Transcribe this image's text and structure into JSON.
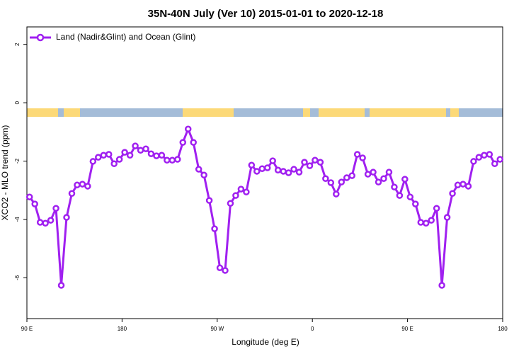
{
  "chart_data": {
    "type": "line",
    "title": "35N-40N July (Ver 10)   2015-01-01 to 2020-12-18",
    "x_label": "Longitude (deg E)",
    "y_label": "XCO2 - MLO trend (ppm)",
    "x": [
      92.5,
      97.5,
      102.5,
      107.5,
      112.5,
      117.5,
      122.5,
      127.5,
      132.5,
      137.5,
      142.5,
      147.5,
      152.5,
      157.5,
      162.5,
      167.5,
      172.5,
      177.5,
      182.5,
      187.5,
      192.5,
      197.5,
      202.5,
      207.5,
      212.5,
      217.5,
      222.5,
      227.5,
      232.5,
      237.5,
      242.5,
      247.5,
      252.5,
      257.5,
      262.5,
      267.5,
      272.5,
      277.5,
      282.5,
      287.5,
      292.5,
      297.5,
      302.5,
      307.5,
      312.5,
      317.5,
      322.5,
      327.5,
      332.5,
      337.5,
      342.5,
      347.5,
      352.5,
      357.5,
      362.5,
      367.5,
      372.5,
      377.5,
      382.5,
      387.5,
      392.5,
      397.5,
      402.5,
      407.5,
      412.5,
      417.5,
      422.5,
      427.5,
      432.5,
      437.5,
      442.5,
      447.5,
      452.5,
      457.5,
      462.5,
      467.5,
      472.5,
      477.5,
      482.5,
      487.5,
      492.5,
      497.5,
      502.5,
      507.5,
      512.5,
      517.5,
      522.5,
      527.5,
      532.5,
      537.5
    ],
    "series": [
      {
        "name": "Land (Nadir&Glint) and Ocean (Glint)",
        "color": "#a020f0",
        "values": [
          -3.23,
          -3.47,
          -4.1,
          -4.13,
          -4.03,
          -3.62,
          -6.26,
          -3.93,
          -3.11,
          -2.82,
          -2.79,
          -2.86,
          -2.01,
          -1.87,
          -1.8,
          -1.77,
          -2.09,
          -1.94,
          -1.7,
          -1.8,
          -1.48,
          -1.63,
          -1.58,
          -1.75,
          -1.82,
          -1.8,
          -1.97,
          -1.97,
          -1.94,
          -1.36,
          -0.9,
          -1.36,
          -2.28,
          -2.48,
          -3.35,
          -4.32,
          -5.66,
          -5.75,
          -3.45,
          -3.18,
          -2.96,
          -3.06,
          -2.14,
          -2.35,
          -2.26,
          -2.23,
          -1.99,
          -2.31,
          -2.35,
          -2.4,
          -2.28,
          -2.38,
          -2.04,
          -2.16,
          -1.97,
          -2.04,
          -2.6,
          -2.74,
          -3.13,
          -2.72,
          -2.57,
          -2.5,
          -1.77,
          -1.89,
          -2.45,
          -2.38,
          -2.72,
          -2.6,
          -2.38,
          -2.89,
          -3.18,
          -2.62,
          -3.23,
          -3.47,
          -4.1,
          -4.13,
          -4.03,
          -3.62,
          -6.26,
          -3.93,
          -3.11,
          -2.82,
          -2.79,
          -2.86,
          -2.01,
          -1.87,
          -1.8,
          -1.77,
          -2.09,
          -1.94
        ]
      }
    ],
    "xlim": [
      90,
      540
    ],
    "xticks": [
      {
        "value": 90,
        "label": "90 E"
      },
      {
        "value": 180,
        "label": "180"
      },
      {
        "value": 270,
        "label": "90 W"
      },
      {
        "value": 360,
        "label": "0"
      },
      {
        "value": 450,
        "label": "90 E"
      },
      {
        "value": 540,
        "label": "180"
      }
    ],
    "ylim": [
      -7.4,
      2.6
    ],
    "yticks": [
      -6,
      -4,
      -2,
      0,
      2
    ],
    "legend": "topleft"
  }
}
